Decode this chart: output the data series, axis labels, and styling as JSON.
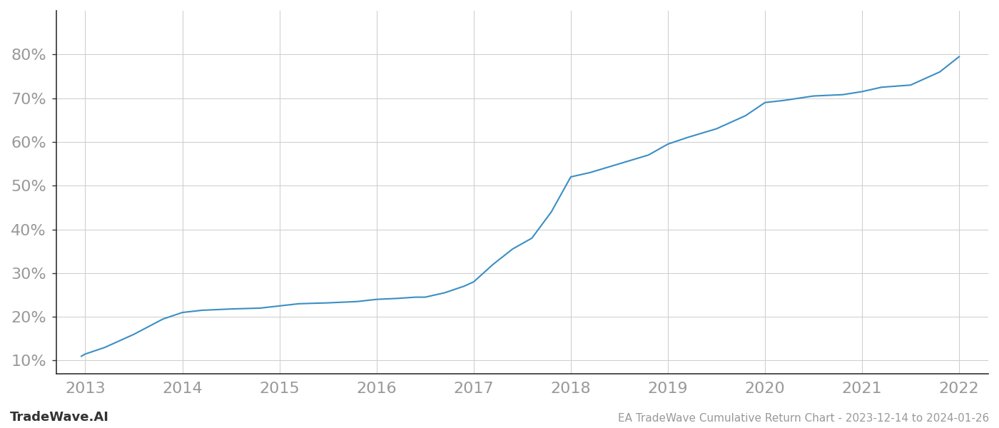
{
  "x_values": [
    2012.96,
    2013.0,
    2013.2,
    2013.5,
    2013.8,
    2014.0,
    2014.2,
    2014.5,
    2014.8,
    2015.0,
    2015.2,
    2015.5,
    2015.8,
    2016.0,
    2016.2,
    2016.4,
    2016.5,
    2016.7,
    2016.9,
    2017.0,
    2017.2,
    2017.4,
    2017.6,
    2017.8,
    2017.9,
    2018.0,
    2018.2,
    2018.5,
    2018.8,
    2019.0,
    2019.2,
    2019.5,
    2019.8,
    2020.0,
    2020.2,
    2020.5,
    2020.8,
    2021.0,
    2021.2,
    2021.5,
    2021.8,
    2022.0
  ],
  "y_values": [
    11.0,
    11.5,
    13.0,
    16.0,
    19.5,
    21.0,
    21.5,
    21.8,
    22.0,
    22.5,
    23.0,
    23.2,
    23.5,
    24.0,
    24.2,
    24.5,
    24.5,
    25.5,
    27.0,
    28.0,
    32.0,
    35.5,
    38.0,
    44.0,
    48.0,
    52.0,
    53.0,
    55.0,
    57.0,
    59.5,
    61.0,
    63.0,
    66.0,
    69.0,
    69.5,
    70.5,
    70.8,
    71.5,
    72.5,
    73.0,
    76.0,
    79.5
  ],
  "line_color": "#3a8fc4",
  "line_width": 1.5,
  "background_color": "#ffffff",
  "grid_color": "#cccccc",
  "title": "EA TradeWave Cumulative Return Chart - 2023-12-14 to 2024-01-26",
  "watermark": "TradeWave.AI",
  "x_tick_labels": [
    "2013",
    "2014",
    "2015",
    "2016",
    "2017",
    "2018",
    "2019",
    "2020",
    "2021",
    "2022"
  ],
  "x_tick_positions": [
    2013,
    2014,
    2015,
    2016,
    2017,
    2018,
    2019,
    2020,
    2021,
    2022
  ],
  "y_tick_labels": [
    "10%",
    "20%",
    "30%",
    "40%",
    "50%",
    "60%",
    "70%",
    "80%"
  ],
  "y_tick_positions": [
    10,
    20,
    30,
    40,
    50,
    60,
    70,
    80
  ],
  "xlim": [
    2012.7,
    2022.3
  ],
  "ylim": [
    7,
    90
  ],
  "tick_color": "#999999",
  "spine_color": "#333333",
  "tick_fontsize": 16,
  "title_fontsize": 11,
  "watermark_fontsize": 13
}
